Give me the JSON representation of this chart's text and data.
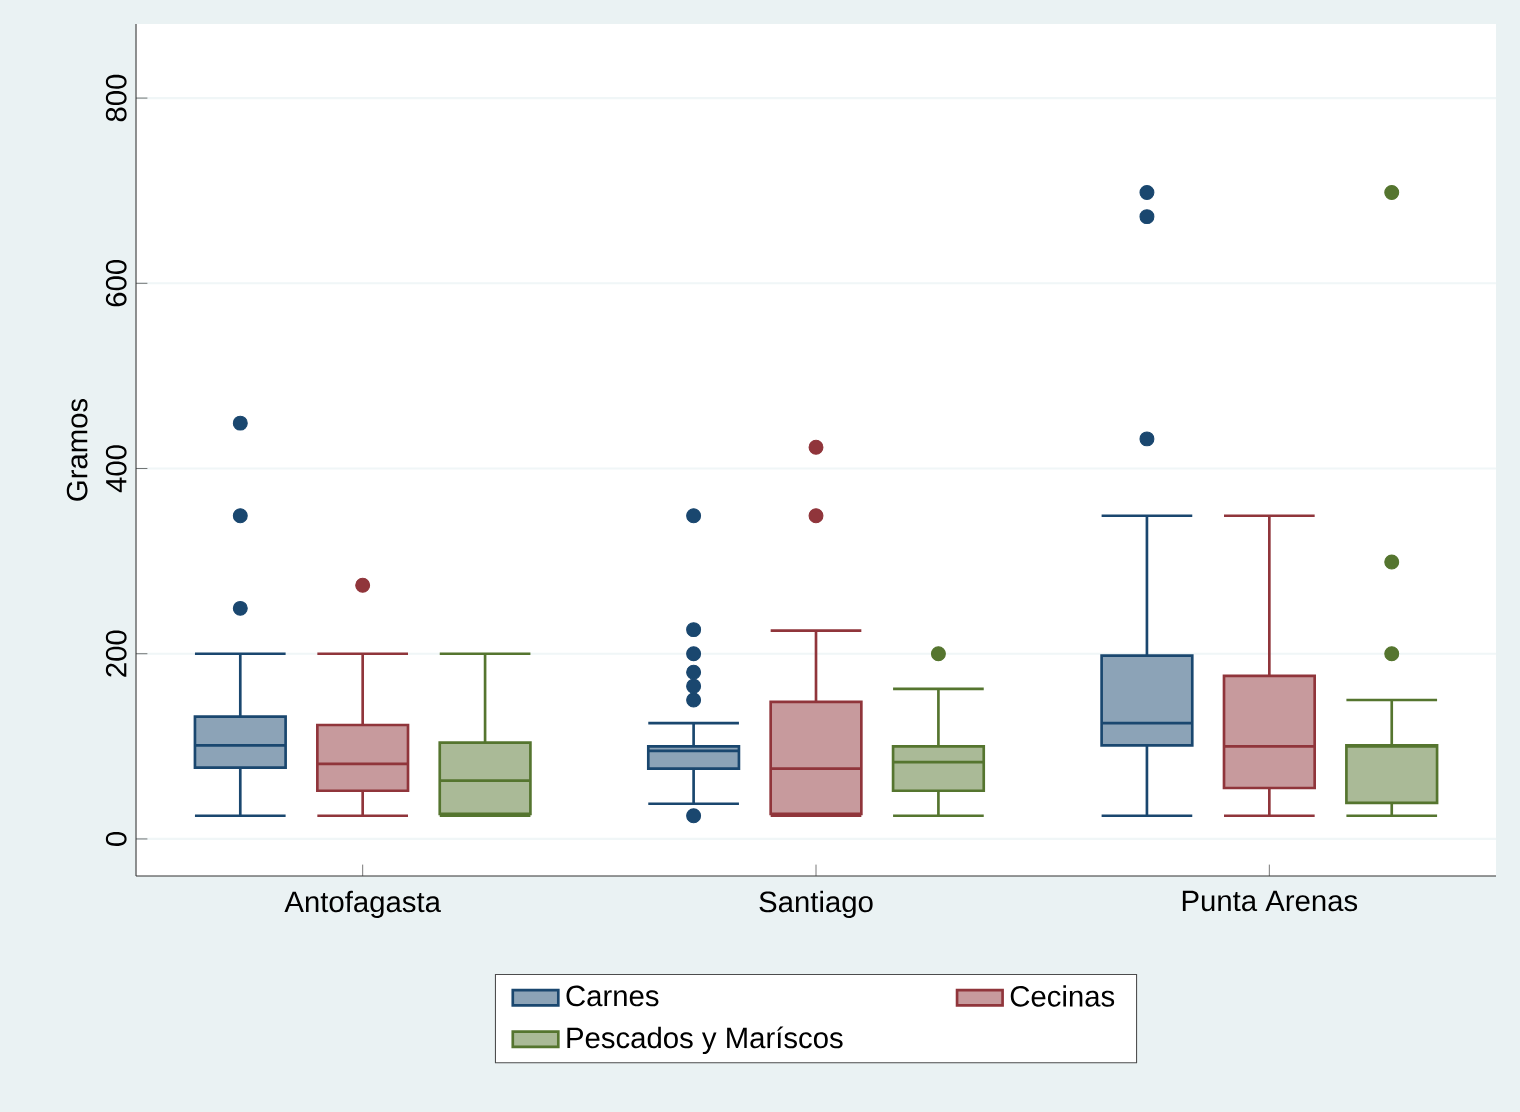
{
  "chart_data": {
    "type": "box",
    "ylabel": "Gramos",
    "categories": [
      "Antofagasta",
      "Santiago",
      "Punta Arenas"
    ],
    "ylim": [
      -40,
      880
    ],
    "yticks": [
      0,
      200,
      400,
      600,
      800
    ],
    "grid": "y",
    "legend": "bottom",
    "series": [
      {
        "name": "Carnes",
        "color": "#1a476f",
        "boxes": [
          {
            "low": 25,
            "q1": 77,
            "median": 101,
            "q3": 132,
            "high": 200,
            "outliers": [
              249,
              349,
              449
            ]
          },
          {
            "low": 38,
            "q1": 76,
            "median": 95,
            "q3": 100,
            "high": 125,
            "outliers": [
              25,
              150,
              165,
              180,
              200,
              226,
              349
            ]
          },
          {
            "low": 25,
            "q1": 101,
            "median": 125,
            "q3": 198,
            "high": 349,
            "outliers": [
              432,
              672,
              698
            ]
          }
        ]
      },
      {
        "name": "Cecinas",
        "color": "#90353b",
        "boxes": [
          {
            "low": 25,
            "q1": 52,
            "median": 81,
            "q3": 123,
            "high": 200,
            "outliers": [
              274
            ]
          },
          {
            "low": 25,
            "q1": 27,
            "median": 76,
            "q3": 148,
            "high": 225,
            "outliers": [
              349,
              423
            ]
          },
          {
            "low": 25,
            "q1": 55,
            "median": 100,
            "q3": 176,
            "high": 349
          }
        ]
      },
      {
        "name": "Pescados y Maríscos",
        "color": "#55752f",
        "boxes": [
          {
            "low": 25,
            "q1": 27,
            "median": 63,
            "q3": 104,
            "high": 200
          },
          {
            "low": 25,
            "q1": 52,
            "median": 83,
            "q3": 100,
            "high": 162,
            "outliers": [
              200
            ]
          },
          {
            "low": 25,
            "q1": 39,
            "median": 100,
            "q3": 101,
            "high": 150,
            "outliers": [
              200,
              299,
              698
            ]
          }
        ]
      }
    ]
  }
}
